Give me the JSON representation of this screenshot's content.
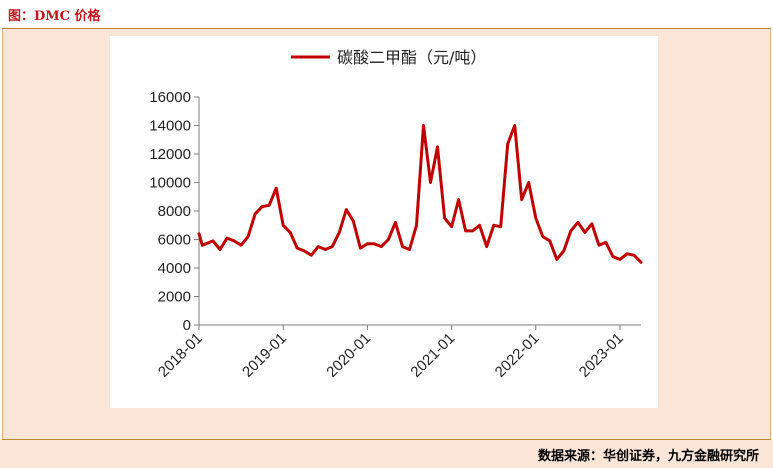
{
  "header": {
    "title": "图：DMC 价格"
  },
  "footer": {
    "source": "数据来源：华创证券，九方金融研究所"
  },
  "colors": {
    "series": "#c00000",
    "accent": "#c0161d",
    "frame_bg": "#fbe5d6"
  },
  "chart_data": {
    "type": "line",
    "legend": {
      "placement": "top-center",
      "entries": [
        "碳酸二甲酯（元/吨）"
      ]
    },
    "ylim": [
      0,
      16000
    ],
    "yticks": [
      0,
      2000,
      4000,
      6000,
      8000,
      10000,
      12000,
      14000,
      16000
    ],
    "ytick_labels": [
      "0",
      "2000",
      "4000",
      "6000",
      "8000",
      "10000",
      "12000",
      "14000",
      "16000"
    ],
    "xlim": [
      "2018-01",
      "2023-04"
    ],
    "xticks": [
      "2018-01",
      "2019-01",
      "2020-01",
      "2021-01",
      "2022-01",
      "2023-01"
    ],
    "grid": false,
    "series": [
      {
        "name": "碳酸二甲酯（元/吨）",
        "points": [
          [
            "2018-01",
            6400
          ],
          [
            "2018-01-15",
            5600
          ],
          [
            "2018-02",
            5700
          ],
          [
            "2018-03",
            5900
          ],
          [
            "2018-04",
            5300
          ],
          [
            "2018-05",
            6100
          ],
          [
            "2018-06",
            5900
          ],
          [
            "2018-07",
            5600
          ],
          [
            "2018-08",
            6200
          ],
          [
            "2018-09",
            7800
          ],
          [
            "2018-10",
            8300
          ],
          [
            "2018-11",
            8400
          ],
          [
            "2018-12",
            9600
          ],
          [
            "2019-01",
            7000
          ],
          [
            "2019-02",
            6500
          ],
          [
            "2019-03",
            5400
          ],
          [
            "2019-04",
            5200
          ],
          [
            "2019-05",
            4900
          ],
          [
            "2019-06",
            5500
          ],
          [
            "2019-07",
            5300
          ],
          [
            "2019-08",
            5500
          ],
          [
            "2019-09",
            6500
          ],
          [
            "2019-10",
            8100
          ],
          [
            "2019-11",
            7300
          ],
          [
            "2019-12",
            5400
          ],
          [
            "2020-01",
            5700
          ],
          [
            "2020-02",
            5700
          ],
          [
            "2020-03",
            5500
          ],
          [
            "2020-04",
            6000
          ],
          [
            "2020-05",
            7200
          ],
          [
            "2020-06",
            5500
          ],
          [
            "2020-07",
            5300
          ],
          [
            "2020-08",
            7000
          ],
          [
            "2020-09",
            14000
          ],
          [
            "2020-10",
            10000
          ],
          [
            "2020-11",
            12500
          ],
          [
            "2020-12",
            7500
          ],
          [
            "2021-01",
            6900
          ],
          [
            "2021-02",
            8800
          ],
          [
            "2021-03",
            6600
          ],
          [
            "2021-04",
            6600
          ],
          [
            "2021-05",
            7000
          ],
          [
            "2021-06",
            5500
          ],
          [
            "2021-07",
            7000
          ],
          [
            "2021-08",
            6900
          ],
          [
            "2021-09",
            12700
          ],
          [
            "2021-10",
            14000
          ],
          [
            "2021-11",
            8800
          ],
          [
            "2021-12",
            10000
          ],
          [
            "2022-01",
            7500
          ],
          [
            "2022-02",
            6200
          ],
          [
            "2022-03",
            5900
          ],
          [
            "2022-04",
            4600
          ],
          [
            "2022-05",
            5200
          ],
          [
            "2022-06",
            6600
          ],
          [
            "2022-07",
            7200
          ],
          [
            "2022-08",
            6500
          ],
          [
            "2022-09",
            7100
          ],
          [
            "2022-10",
            5600
          ],
          [
            "2022-11",
            5800
          ],
          [
            "2022-12",
            4800
          ],
          [
            "2023-01",
            4600
          ],
          [
            "2023-02",
            5000
          ],
          [
            "2023-03",
            4900
          ],
          [
            "2023-04",
            4400
          ]
        ]
      }
    ]
  }
}
